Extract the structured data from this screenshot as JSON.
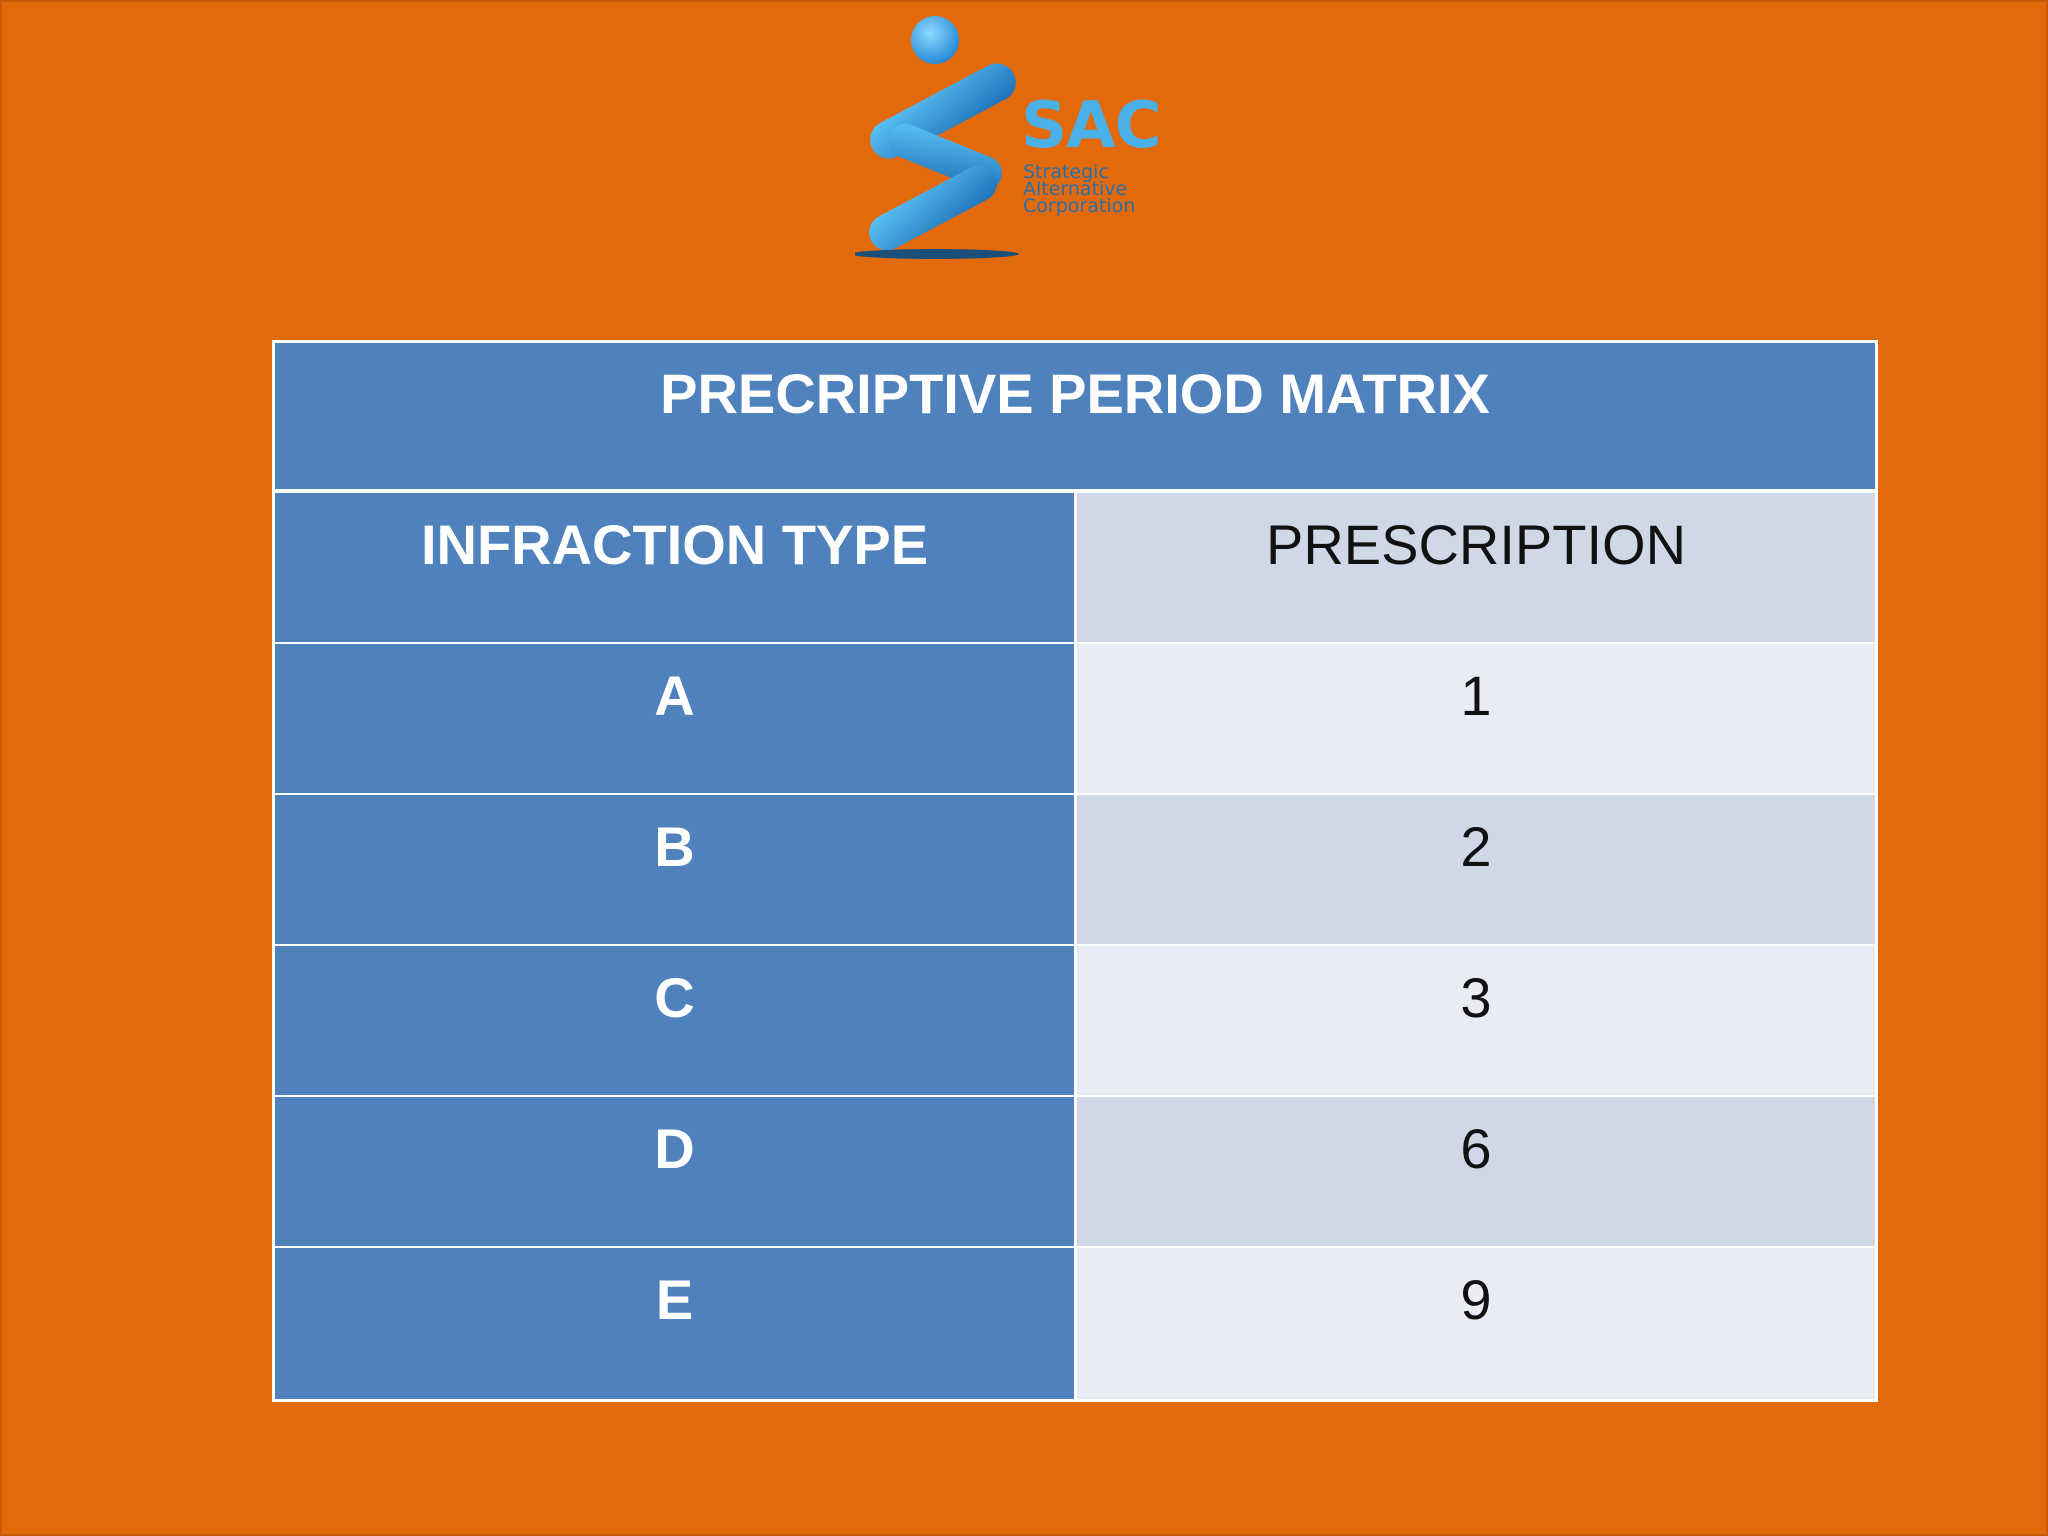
{
  "logo": {
    "name": "SAC",
    "tagline": [
      "Strategic",
      "Alternative",
      "Corporation"
    ]
  },
  "table": {
    "title": "PRECRIPTIVE PERIOD MATRIX",
    "headers": [
      "INFRACTION TYPE",
      "PRESCRIPTION"
    ],
    "rows": [
      {
        "type": "A",
        "prescription": "1"
      },
      {
        "type": "B",
        "prescription": "2"
      },
      {
        "type": "C",
        "prescription": "3"
      },
      {
        "type": "D",
        "prescription": "6"
      },
      {
        "type": "E",
        "prescription": "9"
      }
    ]
  },
  "colors": {
    "background": "#e36a0b",
    "header_blue": "#4f81bd",
    "cell_dark": "#d0d8e8",
    "cell_light": "#e9ecf4",
    "logo_blue": "#4ab0e8"
  }
}
